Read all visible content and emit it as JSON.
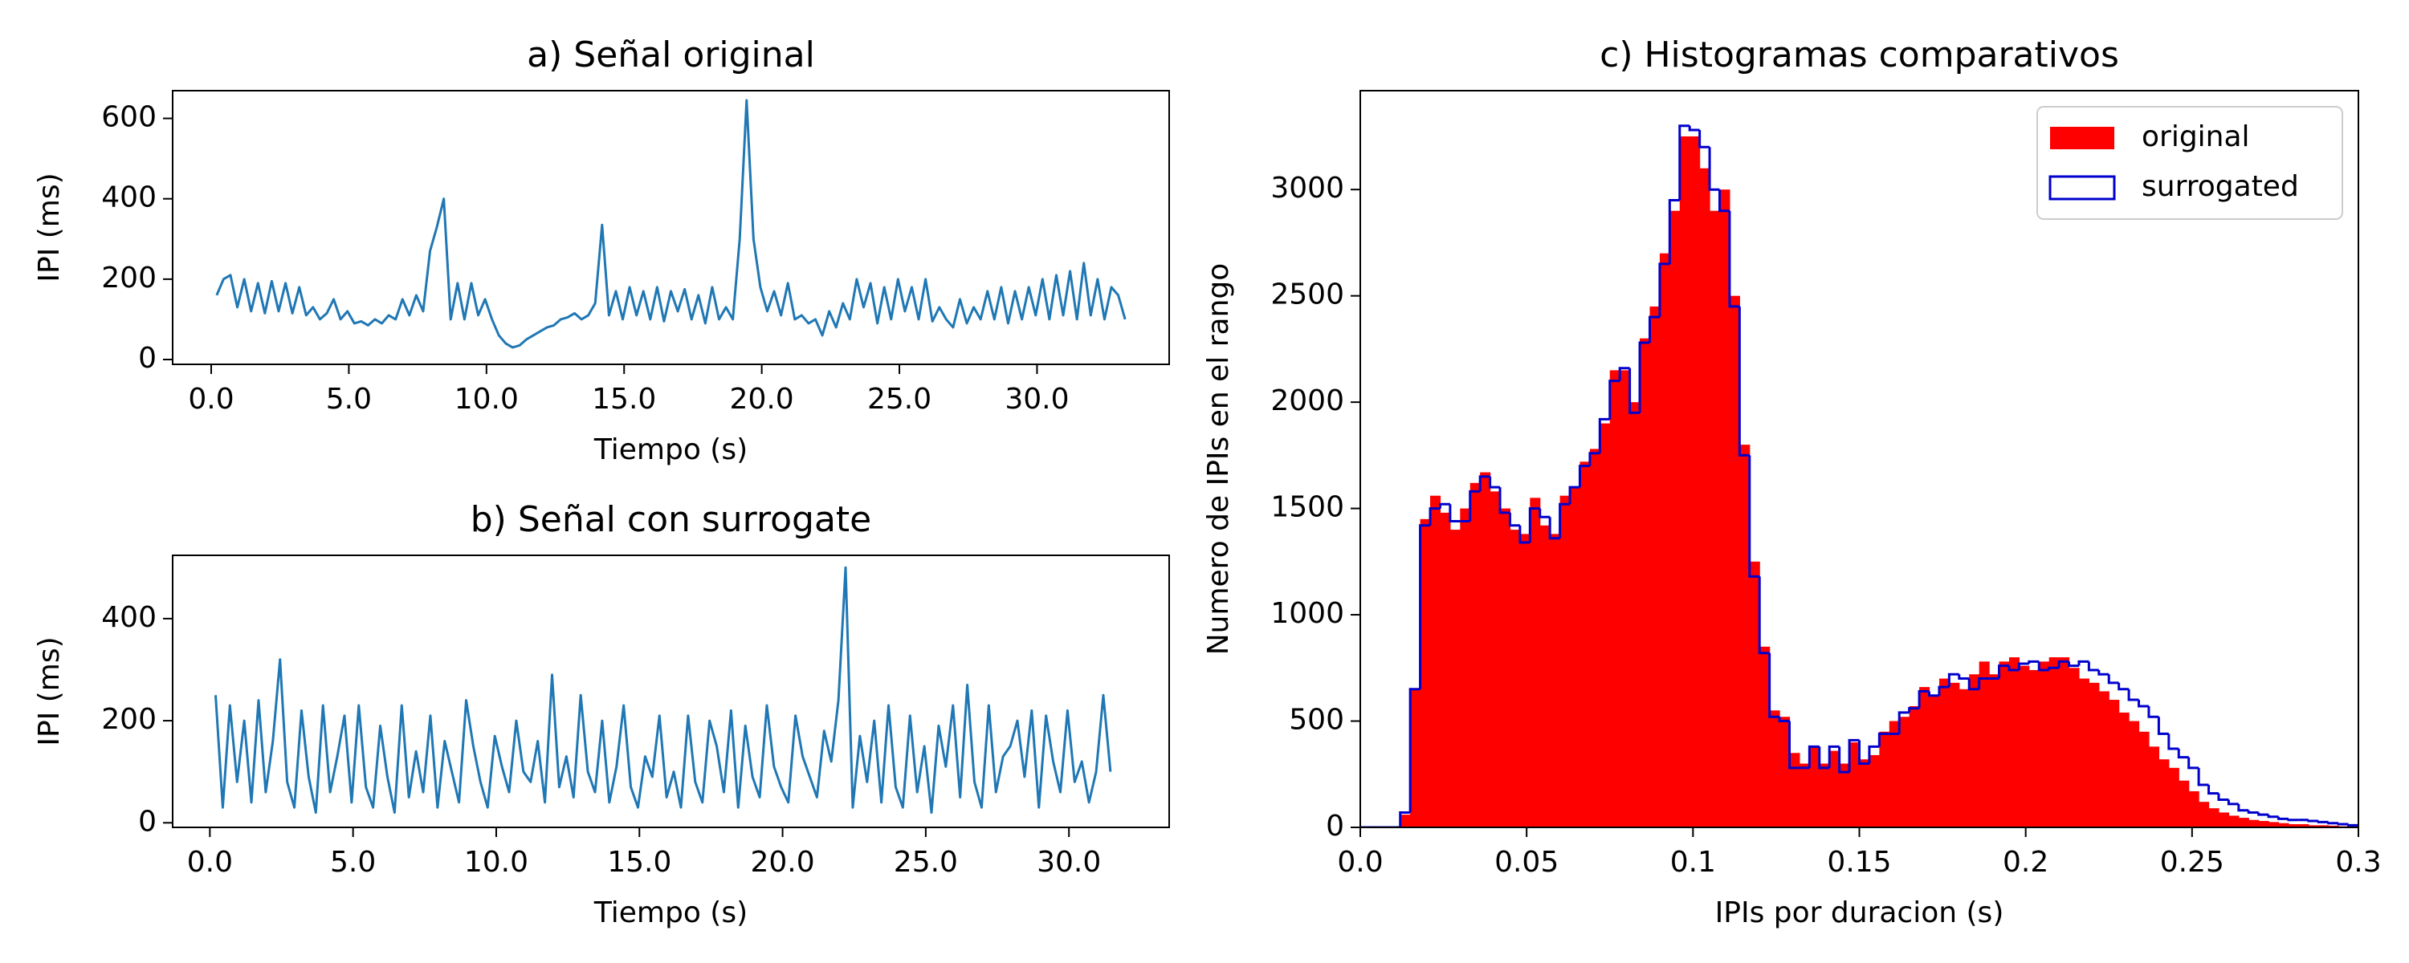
{
  "chart_data": [
    {
      "type": "line",
      "title": "a) Señal original",
      "xlabel": "Tiempo (s)",
      "ylabel": "IPI (ms)",
      "color": "#1f77b4",
      "xlim": [
        -1.4,
        34.8
      ],
      "ylim": [
        -12,
        669
      ],
      "xticks": [
        {
          "value": 0,
          "label": "0.0"
        },
        {
          "value": 5,
          "label": "5.0"
        },
        {
          "value": 10,
          "label": "10.0"
        },
        {
          "value": 15,
          "label": "15.0"
        },
        {
          "value": 20,
          "label": "20.0"
        },
        {
          "value": 25,
          "label": "25.0"
        },
        {
          "value": 30,
          "label": "30.0"
        }
      ],
      "yticks": [
        0,
        200,
        400,
        600
      ],
      "x": [
        0.2,
        0.45,
        0.7,
        0.95,
        1.2,
        1.45,
        1.7,
        1.95,
        2.2,
        2.45,
        2.7,
        2.95,
        3.2,
        3.45,
        3.7,
        3.95,
        4.2,
        4.45,
        4.7,
        4.95,
        5.2,
        5.45,
        5.7,
        5.95,
        6.2,
        6.45,
        6.7,
        6.95,
        7.2,
        7.45,
        7.7,
        7.95,
        8.2,
        8.45,
        8.7,
        8.95,
        9.2,
        9.45,
        9.7,
        9.95,
        10.2,
        10.45,
        10.7,
        10.95,
        11.2,
        11.45,
        11.7,
        11.95,
        12.2,
        12.45,
        12.7,
        12.95,
        13.2,
        13.45,
        13.7,
        13.95,
        14.2,
        14.45,
        14.7,
        14.95,
        15.2,
        15.45,
        15.7,
        15.95,
        16.2,
        16.45,
        16.7,
        16.95,
        17.2,
        17.45,
        17.7,
        17.95,
        18.2,
        18.45,
        18.7,
        18.95,
        19.2,
        19.45,
        19.7,
        19.95,
        20.2,
        20.45,
        20.7,
        20.95,
        21.2,
        21.45,
        21.7,
        21.95,
        22.2,
        22.45,
        22.7,
        22.95,
        23.2,
        23.45,
        23.7,
        23.95,
        24.2,
        24.45,
        24.7,
        24.95,
        25.2,
        25.45,
        25.7,
        25.95,
        26.2,
        26.45,
        26.7,
        26.95,
        27.2,
        27.45,
        27.7,
        27.95,
        28.2,
        28.45,
        28.7,
        28.95,
        29.2,
        29.45,
        29.7,
        29.95,
        30.2,
        30.45,
        30.7,
        30.95,
        31.2,
        31.45,
        31.7,
        31.95,
        32.2,
        32.45,
        32.7,
        32.95,
        33.2
      ],
      "values": [
        160,
        200,
        210,
        130,
        200,
        120,
        190,
        115,
        195,
        120,
        190,
        115,
        180,
        110,
        130,
        100,
        115,
        150,
        100,
        120,
        90,
        95,
        85,
        100,
        90,
        110,
        100,
        150,
        110,
        160,
        120,
        270,
        330,
        400,
        100,
        190,
        100,
        190,
        110,
        150,
        100,
        60,
        40,
        30,
        35,
        50,
        60,
        70,
        80,
        85,
        100,
        105,
        115,
        100,
        110,
        140,
        335,
        110,
        170,
        100,
        180,
        110,
        170,
        100,
        180,
        95,
        170,
        120,
        175,
        100,
        160,
        90,
        180,
        100,
        130,
        100,
        300,
        645,
        300,
        180,
        120,
        170,
        110,
        190,
        100,
        110,
        90,
        100,
        60,
        120,
        80,
        140,
        100,
        200,
        130,
        190,
        90,
        180,
        100,
        200,
        120,
        180,
        100,
        200,
        95,
        130,
        100,
        80,
        150,
        90,
        130,
        100,
        170,
        100,
        180,
        90,
        170,
        100,
        180,
        110,
        200,
        100,
        210,
        110,
        220,
        100,
        240,
        110,
        200,
        100,
        180,
        160,
        100
      ]
    },
    {
      "type": "line",
      "title": "b) Señal con surrogate",
      "xlabel": "Tiempo (s)",
      "ylabel": "IPI (ms)",
      "color": "#1f77b4",
      "xlim": [
        -1.3,
        33.5
      ],
      "ylim": [
        -9,
        524
      ],
      "xticks": [
        {
          "value": 0,
          "label": "0.0"
        },
        {
          "value": 5,
          "label": "5.0"
        },
        {
          "value": 10,
          "label": "10.0"
        },
        {
          "value": 15,
          "label": "15.0"
        },
        {
          "value": 20,
          "label": "20.0"
        },
        {
          "value": 25,
          "label": "25.0"
        },
        {
          "value": 30,
          "label": "30.0"
        }
      ],
      "yticks": [
        0,
        200,
        400
      ],
      "x": [
        0.2,
        0.45,
        0.7,
        0.95,
        1.2,
        1.45,
        1.7,
        1.95,
        2.2,
        2.45,
        2.7,
        2.95,
        3.2,
        3.45,
        3.7,
        3.95,
        4.2,
        4.45,
        4.7,
        4.95,
        5.2,
        5.45,
        5.7,
        5.95,
        6.2,
        6.45,
        6.7,
        6.95,
        7.2,
        7.45,
        7.7,
        7.95,
        8.2,
        8.45,
        8.7,
        8.95,
        9.2,
        9.45,
        9.7,
        9.95,
        10.2,
        10.45,
        10.7,
        10.95,
        11.2,
        11.45,
        11.7,
        11.95,
        12.2,
        12.45,
        12.7,
        12.95,
        13.2,
        13.45,
        13.7,
        13.95,
        14.2,
        14.45,
        14.7,
        14.95,
        15.2,
        15.45,
        15.7,
        15.95,
        16.2,
        16.45,
        16.7,
        16.95,
        17.2,
        17.45,
        17.7,
        17.95,
        18.2,
        18.45,
        18.7,
        18.95,
        19.2,
        19.45,
        19.7,
        19.95,
        20.2,
        20.45,
        20.7,
        20.95,
        21.2,
        21.45,
        21.7,
        21.95,
        22.2,
        22.45,
        22.7,
        22.95,
        23.2,
        23.45,
        23.7,
        23.95,
        24.2,
        24.45,
        24.7,
        24.95,
        25.2,
        25.45,
        25.7,
        25.95,
        26.2,
        26.45,
        26.7,
        26.95,
        27.2,
        27.45,
        27.7,
        27.95,
        28.2,
        28.45,
        28.7,
        28.95,
        29.2,
        29.45,
        29.7,
        29.95,
        30.2,
        30.45,
        30.7,
        30.95,
        31.2,
        31.45
      ],
      "values": [
        250,
        30,
        230,
        80,
        200,
        40,
        240,
        60,
        160,
        320,
        80,
        30,
        220,
        90,
        20,
        230,
        60,
        130,
        210,
        40,
        230,
        70,
        30,
        190,
        90,
        20,
        230,
        50,
        140,
        60,
        210,
        30,
        160,
        100,
        40,
        240,
        150,
        80,
        30,
        170,
        110,
        60,
        200,
        100,
        80,
        160,
        40,
        290,
        70,
        130,
        50,
        250,
        100,
        60,
        200,
        40,
        110,
        230,
        70,
        30,
        130,
        90,
        210,
        50,
        100,
        30,
        210,
        80,
        40,
        200,
        150,
        60,
        220,
        30,
        190,
        90,
        50,
        230,
        110,
        70,
        40,
        210,
        130,
        90,
        50,
        180,
        120,
        240,
        500,
        30,
        170,
        80,
        200,
        40,
        230,
        70,
        30,
        210,
        60,
        150,
        20,
        190,
        110,
        230,
        50,
        270,
        80,
        30,
        230,
        60,
        130,
        150,
        200,
        90,
        220,
        30,
        210,
        120,
        60,
        220,
        80,
        120,
        40,
        100,
        250,
        100
      ]
    },
    {
      "type": "histogram",
      "title": "c) Histogramas comparativos",
      "xlabel": "IPIs por duracion (s)",
      "ylabel": "Numero de IPIs en el rango",
      "xlim": [
        0,
        0.3
      ],
      "ylim": [
        0,
        3465
      ],
      "xticks": [
        {
          "value": 0,
          "label": "0.0"
        },
        0.05,
        0.1,
        0.15,
        0.2,
        0.25,
        0.3
      ],
      "yticks": [
        0,
        500,
        1000,
        1500,
        2000,
        2500,
        3000
      ],
      "legend": "upper right",
      "bins": [
        0,
        0.003,
        0.006,
        0.009,
        0.012,
        0.015,
        0.018,
        0.021,
        0.024,
        0.027,
        0.03,
        0.033,
        0.036,
        0.039,
        0.042,
        0.045,
        0.048,
        0.051,
        0.054,
        0.057,
        0.06,
        0.063,
        0.066,
        0.069,
        0.072,
        0.075,
        0.078,
        0.081,
        0.084,
        0.087,
        0.09,
        0.093,
        0.096,
        0.099,
        0.102,
        0.105,
        0.108,
        0.111,
        0.114,
        0.117,
        0.12,
        0.123,
        0.126,
        0.129,
        0.132,
        0.135,
        0.138,
        0.141,
        0.144,
        0.147,
        0.15,
        0.153,
        0.156,
        0.159,
        0.162,
        0.165,
        0.168,
        0.171,
        0.174,
        0.177,
        0.18,
        0.183,
        0.186,
        0.189,
        0.192,
        0.195,
        0.198,
        0.201,
        0.204,
        0.207,
        0.21,
        0.213,
        0.216,
        0.219,
        0.222,
        0.225,
        0.228,
        0.231,
        0.234,
        0.237,
        0.24,
        0.243,
        0.246,
        0.249,
        0.252,
        0.255,
        0.258,
        0.261,
        0.264,
        0.267,
        0.27,
        0.273,
        0.276,
        0.279,
        0.282,
        0.285,
        0.288,
        0.291,
        0.294,
        0.297,
        0.3
      ],
      "series": [
        {
          "name": "original",
          "color": "#ff0000",
          "histtype": "bar",
          "values": [
            0,
            0,
            0,
            0,
            60,
            650,
            1450,
            1560,
            1480,
            1400,
            1500,
            1620,
            1670,
            1580,
            1500,
            1400,
            1380,
            1550,
            1420,
            1380,
            1560,
            1600,
            1720,
            1780,
            1900,
            2150,
            2150,
            2000,
            2300,
            2450,
            2700,
            2900,
            3250,
            3250,
            3100,
            2900,
            3000,
            2500,
            1800,
            1250,
            850,
            550,
            520,
            350,
            300,
            380,
            300,
            360,
            300,
            400,
            320,
            340,
            450,
            500,
            520,
            570,
            660,
            620,
            700,
            680,
            650,
            720,
            780,
            720,
            780,
            800,
            760,
            740,
            780,
            800,
            800,
            750,
            700,
            680,
            640,
            600,
            540,
            500,
            450,
            380,
            320,
            280,
            220,
            170,
            120,
            90,
            70,
            55,
            45,
            35,
            30,
            25,
            20,
            15,
            15,
            10,
            10,
            8,
            5,
            5
          ]
        },
        {
          "name": "surrogated",
          "color": "#0000cd",
          "histtype": "step",
          "values": [
            0,
            0,
            0,
            0,
            70,
            650,
            1420,
            1500,
            1520,
            1440,
            1440,
            1580,
            1650,
            1600,
            1480,
            1420,
            1340,
            1500,
            1460,
            1360,
            1520,
            1600,
            1700,
            1760,
            1920,
            2100,
            2160,
            1950,
            2280,
            2400,
            2650,
            2950,
            3300,
            3280,
            3200,
            3000,
            2900,
            2450,
            1750,
            1180,
            820,
            520,
            500,
            280,
            280,
            380,
            280,
            380,
            260,
            410,
            300,
            380,
            440,
            440,
            540,
            560,
            640,
            620,
            660,
            720,
            700,
            650,
            700,
            700,
            760,
            740,
            770,
            780,
            740,
            750,
            780,
            760,
            780,
            740,
            720,
            680,
            650,
            600,
            570,
            520,
            440,
            370,
            330,
            280,
            200,
            160,
            130,
            110,
            80,
            70,
            60,
            50,
            40,
            35,
            35,
            30,
            25,
            20,
            15,
            10
          ]
        }
      ]
    }
  ]
}
